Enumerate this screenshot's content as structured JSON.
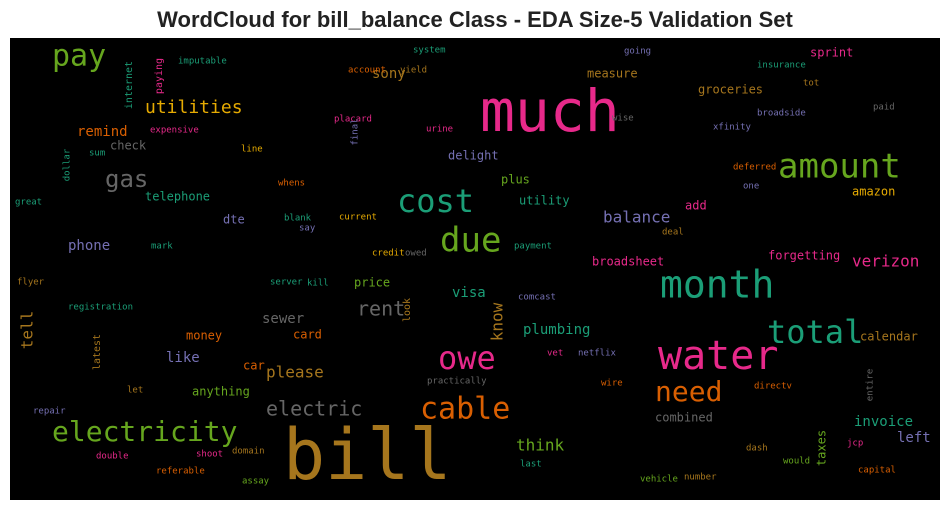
{
  "chart_data": {
    "type": "wordcloud",
    "title": "WordCloud for bill_balance Class - EDA Size-5 Validation Set",
    "background": "#000000",
    "words": [
      {
        "text": "much",
        "color": "#e7298a"
      },
      {
        "text": "bill",
        "color": "#a6761d"
      },
      {
        "text": "water",
        "color": "#e7298a"
      },
      {
        "text": "month",
        "color": "#1b9e77"
      },
      {
        "text": "amount",
        "color": "#66a61e"
      },
      {
        "text": "cost",
        "color": "#1b9e77"
      },
      {
        "text": "due",
        "color": "#66a61e"
      },
      {
        "text": "owe",
        "color": "#e7298a"
      },
      {
        "text": "total",
        "color": "#1b9e77"
      },
      {
        "text": "cable",
        "color": "#d95f02"
      },
      {
        "text": "electricity",
        "color": "#66a61e"
      },
      {
        "text": "pay",
        "color": "#66a61e"
      },
      {
        "text": "need",
        "color": "#d95f02"
      },
      {
        "text": "gas",
        "color": "#666666"
      },
      {
        "text": "electric",
        "color": "#666666"
      },
      {
        "text": "utilities",
        "color": "#e6ab02"
      },
      {
        "text": "balance",
        "color": "#7570b3"
      },
      {
        "text": "rent",
        "color": "#666666"
      },
      {
        "text": "verizon",
        "color": "#e7298a"
      },
      {
        "text": "think",
        "color": "#66a61e"
      },
      {
        "text": "invoice",
        "color": "#1b9e77"
      },
      {
        "text": "left",
        "color": "#7570b3"
      },
      {
        "text": "please",
        "color": "#a6761d"
      },
      {
        "text": "sewer",
        "color": "#666666"
      },
      {
        "text": "visa",
        "color": "#1b9e77"
      },
      {
        "text": "plumbing",
        "color": "#1b9e77"
      },
      {
        "text": "tell",
        "color": "#a6761d"
      },
      {
        "text": "know",
        "color": "#a6761d"
      },
      {
        "text": "remind",
        "color": "#d95f02"
      },
      {
        "text": "check",
        "color": "#666666"
      },
      {
        "text": "phone",
        "color": "#7570b3"
      },
      {
        "text": "telephone",
        "color": "#1b9e77"
      },
      {
        "text": "dte",
        "color": "#7570b3"
      },
      {
        "text": "delight",
        "color": "#7570b3"
      },
      {
        "text": "plus",
        "color": "#66a61e"
      },
      {
        "text": "utility",
        "color": "#1b9e77"
      },
      {
        "text": "add",
        "color": "#e7298a"
      },
      {
        "text": "sony",
        "color": "#a6761d"
      },
      {
        "text": "measure",
        "color": "#a6761d"
      },
      {
        "text": "sprint",
        "color": "#e7298a"
      },
      {
        "text": "groceries",
        "color": "#a6761d"
      },
      {
        "text": "amazon",
        "color": "#e6ab02"
      },
      {
        "text": "broadsheet",
        "color": "#e7298a"
      },
      {
        "text": "forgetting",
        "color": "#e7298a"
      },
      {
        "text": "calendar",
        "color": "#a6761d"
      },
      {
        "text": "card",
        "color": "#d95f02"
      },
      {
        "text": "money",
        "color": "#d95f02"
      },
      {
        "text": "like",
        "color": "#7570b3"
      },
      {
        "text": "car",
        "color": "#d95f02"
      },
      {
        "text": "anything",
        "color": "#66a61e"
      },
      {
        "text": "price",
        "color": "#66a61e"
      },
      {
        "text": "combined",
        "color": "#666666"
      },
      {
        "text": "taxes",
        "color": "#66a61e"
      },
      {
        "text": "latest",
        "color": "#a6761d"
      },
      {
        "text": "internet",
        "color": "#1b9e77"
      },
      {
        "text": "paying",
        "color": "#e7298a"
      },
      {
        "text": "imputable",
        "color": "#1b9e77"
      },
      {
        "text": "system",
        "color": "#1b9e77"
      },
      {
        "text": "going",
        "color": "#7570b3"
      },
      {
        "text": "account",
        "color": "#d95f02"
      },
      {
        "text": "yield",
        "color": "#a6761d"
      },
      {
        "text": "insurance",
        "color": "#1b9e77"
      },
      {
        "text": "tot",
        "color": "#a6761d"
      },
      {
        "text": "paid",
        "color": "#666666"
      },
      {
        "text": "wise",
        "color": "#666666"
      },
      {
        "text": "placard",
        "color": "#e7298a"
      },
      {
        "text": "broadside",
        "color": "#7570b3"
      },
      {
        "text": "xfinity",
        "color": "#7570b3"
      },
      {
        "text": "expensive",
        "color": "#e7298a"
      },
      {
        "text": "urine",
        "color": "#e7298a"
      },
      {
        "text": "final",
        "color": "#7570b3"
      },
      {
        "text": "sum",
        "color": "#1b9e77"
      },
      {
        "text": "dollar",
        "color": "#1b9e77"
      },
      {
        "text": "line",
        "color": "#e6ab02"
      },
      {
        "text": "deferred",
        "color": "#d95f02"
      },
      {
        "text": "whens",
        "color": "#d95f02"
      },
      {
        "text": "one",
        "color": "#7570b3"
      },
      {
        "text": "great",
        "color": "#1b9e77"
      },
      {
        "text": "current",
        "color": "#e6ab02"
      },
      {
        "text": "blank",
        "color": "#1b9e77"
      },
      {
        "text": "say",
        "color": "#7570b3"
      },
      {
        "text": "deal",
        "color": "#a6761d"
      },
      {
        "text": "mark",
        "color": "#1b9e77"
      },
      {
        "text": "credit",
        "color": "#e6ab02"
      },
      {
        "text": "owed",
        "color": "#666666"
      },
      {
        "text": "payment",
        "color": "#1b9e77"
      },
      {
        "text": "flyer",
        "color": "#a6761d"
      },
      {
        "text": "server",
        "color": "#1b9e77"
      },
      {
        "text": "kill",
        "color": "#1b9e77"
      },
      {
        "text": "comcast",
        "color": "#7570b3"
      },
      {
        "text": "registration",
        "color": "#1b9e77"
      },
      {
        "text": "look",
        "color": "#a6761d"
      },
      {
        "text": "vet",
        "color": "#e7298a"
      },
      {
        "text": "netflix",
        "color": "#7570b3"
      },
      {
        "text": "practically",
        "color": "#666666"
      },
      {
        "text": "wire",
        "color": "#d95f02"
      },
      {
        "text": "directv",
        "color": "#d95f02"
      },
      {
        "text": "entire",
        "color": "#666666"
      },
      {
        "text": "let",
        "color": "#a6761d"
      },
      {
        "text": "repair",
        "color": "#7570b3"
      },
      {
        "text": "jcp",
        "color": "#e7298a"
      },
      {
        "text": "domain",
        "color": "#a6761d"
      },
      {
        "text": "shoot",
        "color": "#e7298a"
      },
      {
        "text": "double",
        "color": "#e7298a"
      },
      {
        "text": "dash",
        "color": "#a6761d"
      },
      {
        "text": "would",
        "color": "#66a61e"
      },
      {
        "text": "referable",
        "color": "#d95f02"
      },
      {
        "text": "last",
        "color": "#1b9e77"
      },
      {
        "text": "capital",
        "color": "#d95f02"
      },
      {
        "text": "number",
        "color": "#a6761d"
      },
      {
        "text": "vehicle",
        "color": "#66a61e"
      },
      {
        "text": "assay",
        "color": "#66a61e"
      }
    ]
  }
}
